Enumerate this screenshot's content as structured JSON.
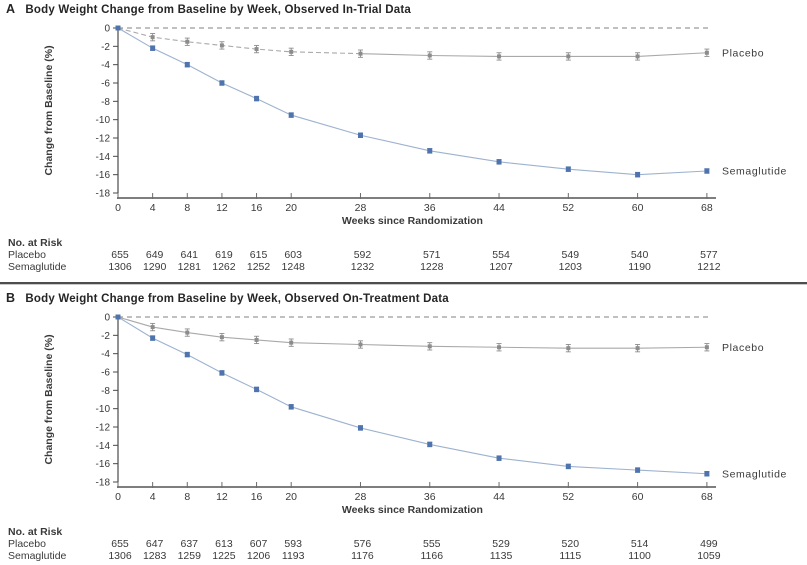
{
  "figure_title": "Body Weight Change from Baseline by Week",
  "chart_data": [
    {
      "panel_label": "A",
      "title": "Body Weight Change from Baseline by Week, Observed In-Trial Data",
      "type": "line",
      "xlabel": "Weeks since Randomization",
      "ylabel": "Change from Baseline (%)",
      "x": [
        0,
        4,
        8,
        12,
        16,
        20,
        28,
        36,
        44,
        52,
        60,
        68
      ],
      "xticks": [
        0,
        4,
        8,
        12,
        16,
        20,
        28,
        36,
        44,
        52,
        60,
        68
      ],
      "yticks": [
        0,
        -2,
        -4,
        -6,
        -8,
        -10,
        -12,
        -14,
        -16,
        -18
      ],
      "ylim": [
        -18,
        0
      ],
      "zero_line_dashed": true,
      "legend_position": "right-of-line",
      "series": [
        {
          "name": "Placebo",
          "values": [
            0,
            -1.0,
            -1.5,
            -1.9,
            -2.3,
            -2.6,
            -2.8,
            -3.0,
            -3.1,
            -3.1,
            -3.1,
            -2.7
          ],
          "marker_color": "#8c8c8c",
          "line_color": "#a9a9a9",
          "marker": "square",
          "error": 0.4,
          "dash_until_week": 28
        },
        {
          "name": "Semaglutide",
          "values": [
            0,
            -2.2,
            -4.0,
            -6.0,
            -7.7,
            -9.5,
            -11.7,
            -13.4,
            -14.6,
            -15.4,
            -16.0,
            -15.6
          ],
          "marker_color": "#4f74ad",
          "line_color": "#9db2cf",
          "marker": "square",
          "error": 0.25
        }
      ],
      "no_at_risk": {
        "title": "No. at Risk",
        "rows": [
          {
            "label": "Placebo",
            "values": [
              655,
              649,
              641,
              619,
              615,
              603,
              592,
              571,
              554,
              549,
              540,
              577
            ]
          },
          {
            "label": "Semaglutide",
            "values": [
              1306,
              1290,
              1281,
              1262,
              1252,
              1248,
              1232,
              1228,
              1207,
              1203,
              1190,
              1212
            ]
          }
        ]
      }
    },
    {
      "panel_label": "B",
      "title": "Body Weight Change from Baseline by Week, Observed On-Treatment Data",
      "type": "line",
      "xlabel": "Weeks since Randomization",
      "ylabel": "Change from Baseline (%)",
      "x": [
        0,
        4,
        8,
        12,
        16,
        20,
        28,
        36,
        44,
        52,
        60,
        68
      ],
      "xticks": [
        0,
        4,
        8,
        12,
        16,
        20,
        28,
        36,
        44,
        52,
        60,
        68
      ],
      "yticks": [
        0,
        -2,
        -4,
        -6,
        -8,
        -10,
        -12,
        -14,
        -16,
        -18
      ],
      "ylim": [
        -18,
        0
      ],
      "zero_line_dashed": true,
      "legend_position": "right-of-line",
      "series": [
        {
          "name": "Placebo",
          "values": [
            0,
            -1.1,
            -1.7,
            -2.2,
            -2.5,
            -2.8,
            -3.0,
            -3.2,
            -3.3,
            -3.4,
            -3.4,
            -3.3
          ],
          "marker_color": "#8c8c8c",
          "line_color": "#a9a9a9",
          "marker": "square",
          "error": 0.4
        },
        {
          "name": "Semaglutide",
          "values": [
            0,
            -2.3,
            -4.1,
            -6.1,
            -7.9,
            -9.8,
            -12.1,
            -13.9,
            -15.4,
            -16.3,
            -16.7,
            -17.1
          ],
          "marker_color": "#4f74ad",
          "line_color": "#9db2cf",
          "marker": "square",
          "error": 0.25
        }
      ],
      "no_at_risk": {
        "title": "No. at Risk",
        "rows": [
          {
            "label": "Placebo",
            "values": [
              655,
              647,
              637,
              613,
              607,
              593,
              576,
              555,
              529,
              520,
              514,
              499
            ]
          },
          {
            "label": "Semaglutide",
            "values": [
              1306,
              1283,
              1259,
              1225,
              1206,
              1193,
              1176,
              1166,
              1135,
              1115,
              1100,
              1059
            ]
          }
        ]
      }
    }
  ],
  "colors": {
    "semaglutide_marker": "#4f74ad",
    "semaglutide_line": "#9db2cf",
    "placebo": "#8c8c8c",
    "axis": "#4a4a4a",
    "zero_dash": "#9a9a9a",
    "text": "#3a3a3a"
  }
}
